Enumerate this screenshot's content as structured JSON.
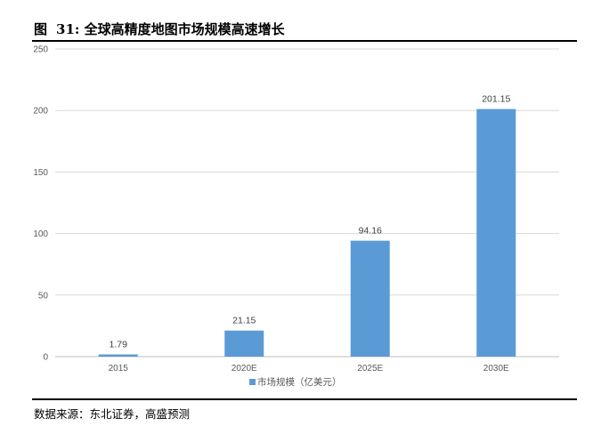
{
  "figure": {
    "label": "图",
    "number": "31:",
    "title": "全球高精度地图市场规模高速增长",
    "source": "数据来源：东北证券，高盛预测"
  },
  "chart_data": {
    "type": "bar",
    "categories": [
      "2015",
      "2020E",
      "2025E",
      "2030E"
    ],
    "series": [
      {
        "name": "市场规模（亿美元）",
        "values": [
          1.79,
          21.15,
          94.16,
          201.15
        ],
        "color": "#5B9BD5"
      }
    ],
    "data_labels": [
      "1.79",
      "21.15",
      "94.16",
      "201.15"
    ],
    "ylim": [
      0,
      250
    ],
    "yticks": [
      0,
      50,
      100,
      150,
      200,
      250
    ],
    "grid": true,
    "legend_position": "bottom",
    "colors": {
      "bar": "#5B9BD5",
      "grid": "#D9D9D9",
      "axis": "#BFBFBF"
    }
  }
}
